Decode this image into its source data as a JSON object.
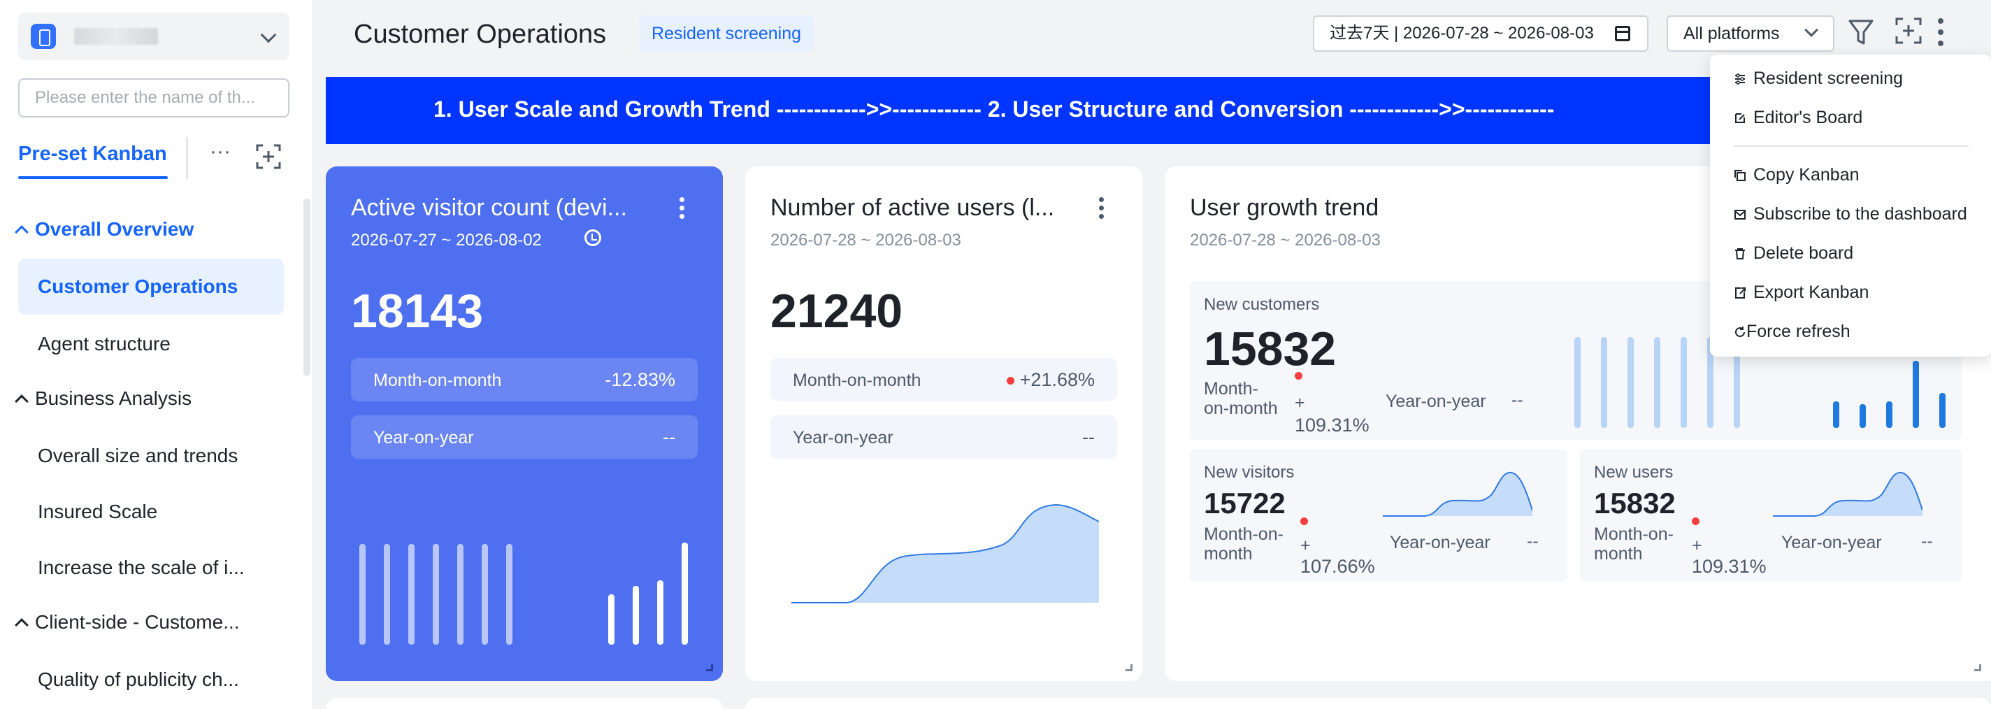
{
  "sidebar": {
    "search_placeholder": "Please enter the name of th...",
    "tab_active": "Pre-set Kanban",
    "tab_more": "···",
    "groups": {
      "overall_overview": "Overall Overview",
      "business_analysis": "Business Analysis",
      "client_side": "Client-side - Custome..."
    },
    "items": {
      "customer_operations": "Customer Operations",
      "agent_structure": "Agent structure",
      "overall_size": "Overall size and trends",
      "insured_scale": "Insured Scale",
      "increase_scale": "Increase the scale of i...",
      "quality_publicity": "Quality of publicity ch..."
    }
  },
  "header": {
    "title": "Customer Operations",
    "tag": "Resident screening",
    "date_range": "过去7天 | 2026-07-28 ~ 2026-08-03",
    "platform": "All platforms"
  },
  "banner": {
    "text": "1. User Scale and Growth Trend ------------>>------------ 2. User Structure and Conversion ------------>>------------"
  },
  "cards": {
    "active_visitors": {
      "title": "Active visitor count (devi...",
      "date": "2026-07-27 ~ 2026-08-02",
      "value": "18143",
      "mom_label": "Month-on-month",
      "mom_value": "-12.83%",
      "yoy_label": "Year-on-year",
      "yoy_value": "--"
    },
    "active_users": {
      "title": "Number of active users (l...",
      "date": "2026-07-28 ~ 2026-08-03",
      "value": "21240",
      "mom_label": "Month-on-month",
      "mom_value": "+21.68%",
      "yoy_label": "Year-on-year",
      "yoy_value": "--"
    },
    "growth": {
      "title": "User growth trend",
      "date": "2026-07-28 ~ 2026-08-03",
      "new_customers": {
        "label": "New customers",
        "value": "15832",
        "mom_label_1": "Month-",
        "mom_label_2": "on-month",
        "mom_plus": "+",
        "mom_value": "109.31%",
        "yoy_label": "Year-on-year",
        "yoy_value": "--"
      },
      "new_visitors": {
        "label": "New visitors",
        "value": "15722",
        "mom_label_1": "Month-on-",
        "mom_label_2": "month",
        "mom_plus": "+",
        "mom_value": "107.66%",
        "yoy_label": "Year-on-year",
        "yoy_value": "--"
      },
      "new_users": {
        "label": "New users",
        "value": "15832",
        "mom_label_1": "Month-on-",
        "mom_label_2": "month",
        "mom_plus": "+",
        "mom_value": "109.31%",
        "yoy_label": "Year-on-year",
        "yoy_value": "--"
      }
    }
  },
  "dropdown": {
    "resident_screening": "Resident screening",
    "editors_board": "Editor's Board",
    "copy_kanban": "Copy Kanban",
    "subscribe": "Subscribe to the dashboard",
    "delete_board": "Delete board",
    "export_kanban": "Export Kanban",
    "force_refresh": "Force refresh"
  },
  "colors": {
    "accent": "#1664ff",
    "banner": "#0034ff",
    "card_blue": "#4e6ff0",
    "chart_fill": "#c6dcfb",
    "chart_line": "#2f7be6",
    "positive_dot": "#f53f3f"
  },
  "icons": {
    "app": "phone-icon",
    "scan": "scan-icon",
    "filter": "filter-icon",
    "fullscreen": "fullscreen-icon",
    "more": "kebab-icon",
    "calendar": "calendar-icon",
    "clock": "clock-icon"
  }
}
